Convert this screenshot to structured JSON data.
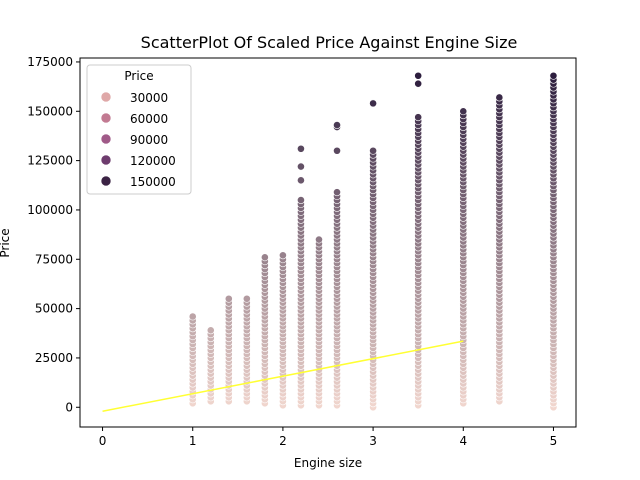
{
  "chart_data": {
    "type": "scatter",
    "title": "ScatterPlot Of Scaled Price Against Engine Size",
    "xlabel": "Engine size",
    "ylabel": "Price",
    "xlim": [
      -0.25,
      5.25
    ],
    "ylim": [
      -10000,
      177000
    ],
    "x_ticks": [
      "0",
      "1",
      "2",
      "3",
      "4",
      "5"
    ],
    "y_ticks": [
      "0",
      "25000",
      "50000",
      "75000",
      "100000",
      "125000",
      "150000",
      "175000"
    ],
    "legend": {
      "title": "Price",
      "placement": "top-left",
      "entries": [
        {
          "label": "30000",
          "color": "#dfa8a8"
        },
        {
          "label": "60000",
          "color": "#c27a92"
        },
        {
          "label": "90000",
          "color": "#a05a88"
        },
        {
          "label": "120000",
          "color": "#6e3c6e"
        },
        {
          "label": "150000",
          "color": "#3b2344"
        }
      ]
    },
    "color_scale": {
      "low": "#f2d7cf",
      "high": "#2d1e3e",
      "min_value": 0,
      "max_value": 168000
    },
    "regression_line": {
      "x": [
        0,
        4
      ],
      "y": [
        -2000,
        33500
      ],
      "color": "#ffff33"
    },
    "point_columns": [
      {
        "x": 1.0,
        "min": 2000,
        "max": 47000
      },
      {
        "x": 1.2,
        "min": 3000,
        "max": 39000
      },
      {
        "x": 1.4,
        "min": 3000,
        "max": 55000
      },
      {
        "x": 1.6,
        "min": 3000,
        "max": 55000
      },
      {
        "x": 1.8,
        "min": 2000,
        "max": 76000
      },
      {
        "x": 2.0,
        "min": 1000,
        "max": 77000
      },
      {
        "x": 2.2,
        "min": 1000,
        "max": 105000,
        "outliers": [
          115000,
          122000,
          131000
        ]
      },
      {
        "x": 2.4,
        "min": 1000,
        "max": 86000
      },
      {
        "x": 2.6,
        "min": 1000,
        "max": 110000,
        "outliers": [
          130000,
          142000,
          143000
        ]
      },
      {
        "x": 3.0,
        "min": 0,
        "max": 131000,
        "outliers": [
          154000
        ]
      },
      {
        "x": 3.5,
        "min": 1000,
        "max": 148000,
        "outliers": [
          164000,
          168000
        ]
      },
      {
        "x": 4.0,
        "min": 2000,
        "max": 151000
      },
      {
        "x": 4.4,
        "min": 3000,
        "max": 157000
      },
      {
        "x": 5.0,
        "min": 0,
        "max": 168000
      }
    ]
  }
}
